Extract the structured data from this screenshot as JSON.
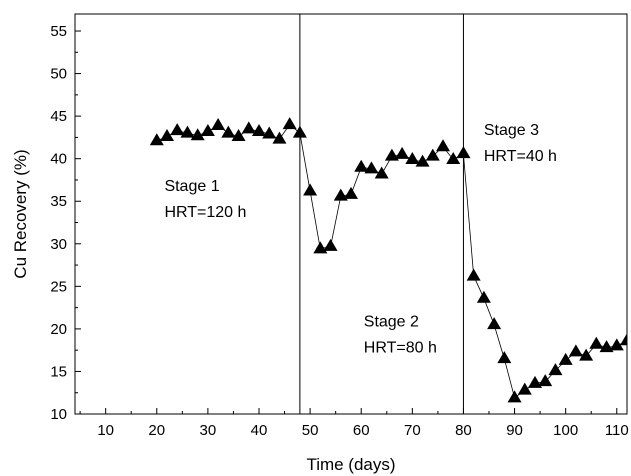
{
  "chart_data": {
    "type": "scatter",
    "title": "",
    "xlabel": "Time (days)",
    "ylabel": "Cu Recovery (%)",
    "xlim": [
      4,
      112
    ],
    "ylim": [
      10,
      57
    ],
    "xticks": [
      10,
      20,
      30,
      40,
      50,
      60,
      70,
      80,
      90,
      100,
      110
    ],
    "yticks": [
      10,
      15,
      20,
      25,
      30,
      35,
      40,
      45,
      50,
      55
    ],
    "grid": false,
    "legend": "none",
    "marker": "triangle",
    "line_style": "thin solid connecting line",
    "series": [
      {
        "x": [
          20,
          22,
          24,
          26,
          28,
          30,
          32,
          34,
          36,
          38,
          40,
          42,
          44,
          46,
          48,
          50,
          52,
          54,
          56,
          58,
          60,
          62,
          64,
          66,
          68,
          70,
          72,
          74,
          76,
          78,
          80,
          82,
          84,
          86,
          88,
          90,
          92,
          94,
          96,
          98,
          100,
          102,
          104,
          106,
          108,
          110,
          112
        ],
        "y": [
          42.1,
          42.6,
          43.3,
          43.0,
          42.7,
          43.2,
          43.9,
          43.0,
          42.6,
          43.5,
          43.2,
          42.9,
          42.3,
          44.0,
          43.0,
          36.2,
          29.4,
          29.7,
          35.6,
          35.8,
          39.0,
          38.8,
          38.2,
          40.3,
          40.5,
          39.9,
          39.6,
          40.3,
          41.4,
          39.9,
          40.6,
          26.2,
          23.6,
          20.5,
          16.5,
          11.9,
          12.8,
          13.6,
          13.8,
          15.1,
          16.3,
          17.3,
          16.8,
          18.2,
          17.8,
          18.0,
          18.6
        ]
      }
    ],
    "vertical_lines": [
      48,
      80
    ],
    "annotations": [
      {
        "lines": [
          "Stage 1",
          "HRT=120 h"
        ],
        "x": 21.5,
        "y": 36.2
      },
      {
        "lines": [
          "Stage 2",
          "HRT=80 h"
        ],
        "x": 60.5,
        "y": 20.3
      },
      {
        "lines": [
          "Stage 3",
          "HRT=40 h"
        ],
        "x": 84,
        "y": 42.8
      }
    ]
  }
}
